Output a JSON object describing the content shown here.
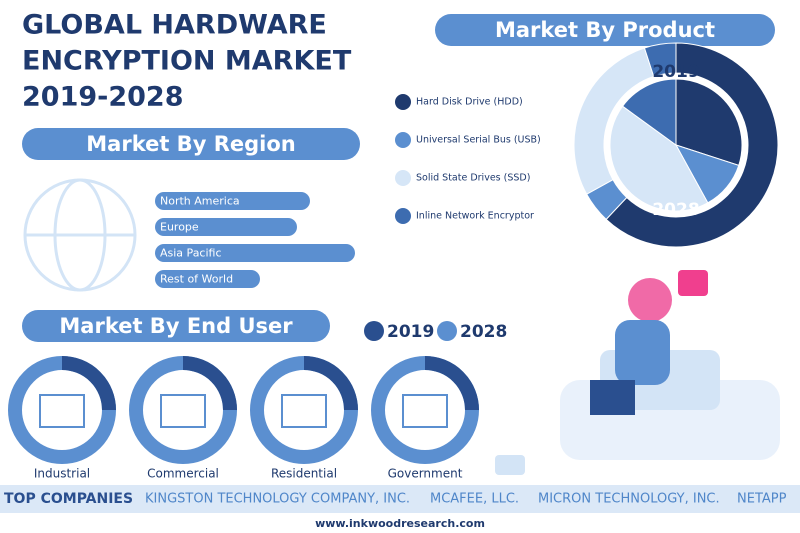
{
  "header": {
    "title": [
      "GLOBAL HARDWARE",
      "ENCRYPTION MARKET",
      "2019-2028"
    ]
  },
  "region": {
    "title": "Market By Region",
    "items": [
      "North America",
      "Europe",
      "Asia Pacific",
      "Rest of World"
    ]
  },
  "chart_data": {
    "type": "pie",
    "title": "Market By Product",
    "categories": [
      "Hard Disk Drive (HDD)",
      "Universal Serial Bus (USB)",
      "Solid State Drives (SSD)",
      "Inline Network Encryptor"
    ],
    "colors": [
      "#1f3a6e",
      "#5b8fd0",
      "#d6e6f7",
      "#3d6cb0"
    ],
    "series": [
      {
        "name": "2019",
        "values": [
          62,
          5,
          28,
          5
        ]
      },
      {
        "name": "2028",
        "values": [
          30,
          12,
          43,
          15
        ]
      }
    ]
  },
  "end_user": {
    "title": "Market By End User",
    "legend": [
      "2019",
      "2028"
    ],
    "items": [
      "Industrial",
      "Commercial",
      "Residential",
      "Government"
    ]
  },
  "companies": {
    "title": "TOP COMPANIES",
    "items": [
      "KINGSTON TECHNOLOGY COMPANY, INC.",
      "MCAFEE, LLC.",
      "MICRON TECHNOLOGY, INC.",
      "NETAPP"
    ]
  },
  "footer": "www.inkwoodresearch.com"
}
